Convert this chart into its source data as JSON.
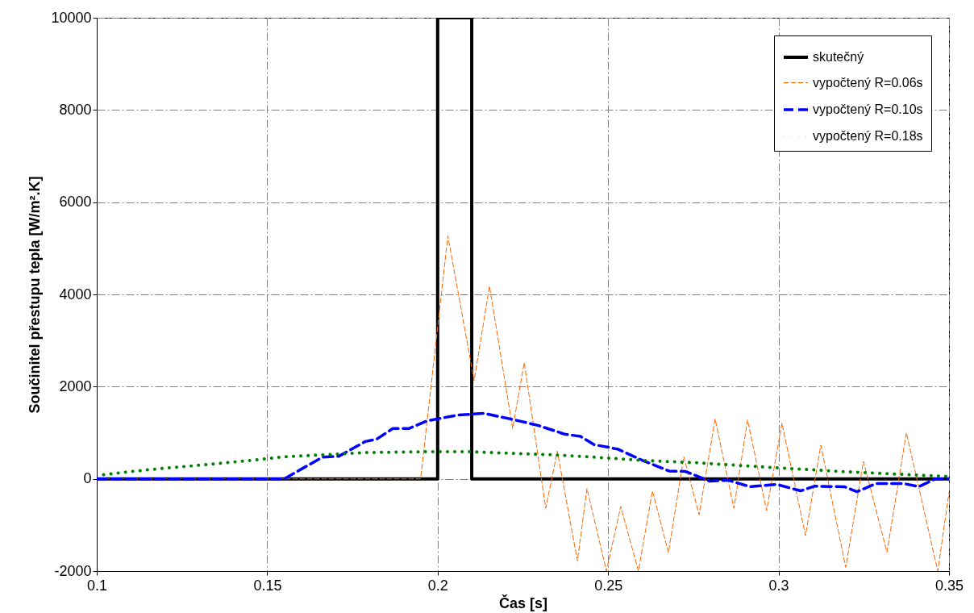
{
  "chart_data": {
    "type": "line",
    "xlabel": "Čas [s]",
    "ylabel": "Součinitel přestupu tepla [W/m².K]",
    "xlim": [
      0.1,
      0.35
    ],
    "xticks": [
      0.1,
      0.15,
      0.2,
      0.25,
      0.3,
      0.35
    ],
    "ylim": [
      -2000,
      10000
    ],
    "yticks": [
      -2000,
      0,
      2000,
      4000,
      6000,
      8000,
      10000
    ],
    "grid": true,
    "legend": "top right",
    "marker": "none",
    "series": [
      {
        "name": "skutečný",
        "color": "#000000",
        "line_style": "solid",
        "x": [
          0.1,
          0.2,
          0.2,
          0.21,
          0.21,
          0.35
        ],
        "values": [
          0,
          0,
          10000,
          10000,
          0,
          0
        ]
      },
      {
        "name": "vypočtený R=0.06s",
        "color": "#ff6600",
        "line_style": "dashed",
        "x": [
          0.1,
          0.195,
          0.203,
          0.2107,
          0.2152,
          0.222,
          0.2254,
          0.2317,
          0.2351,
          0.241,
          0.2438,
          0.2495,
          0.2537,
          0.2589,
          0.263,
          0.2677,
          0.2722,
          0.2767,
          0.2814,
          0.2869,
          0.2909,
          0.2965,
          0.301,
          0.3079,
          0.3124,
          0.3197,
          0.3249,
          0.3318,
          0.3375,
          0.3467,
          0.35
        ],
        "values": [
          0,
          0,
          5270,
          2130,
          4180,
          1090,
          2520,
          -640,
          600,
          -1780,
          -210,
          -2000,
          -600,
          -2000,
          -260,
          -1600,
          480,
          -780,
          1300,
          -640,
          1280,
          -690,
          1210,
          -1230,
          730,
          -1920,
          380,
          -1590,
          1000,
          -2000,
          -300
        ]
      },
      {
        "name": "vypočtený R=0.10s",
        "color": "#0000ff",
        "line_style": "dashed",
        "x": [
          0.1,
          0.155,
          0.1662,
          0.171,
          0.1788,
          0.1821,
          0.1868,
          0.1915,
          0.197,
          0.2057,
          0.2135,
          0.2213,
          0.2294,
          0.2372,
          0.2419,
          0.2459,
          0.2497,
          0.253,
          0.2601,
          0.2679,
          0.2727,
          0.2798,
          0.2852,
          0.2916,
          0.2994,
          0.3065,
          0.3105,
          0.3193,
          0.323,
          0.3287,
          0.3365,
          0.3412,
          0.346,
          0.35
        ],
        "values": [
          0,
          0,
          470,
          490,
          810,
          860,
          1090,
          1090,
          1260,
          1380,
          1420,
          1300,
          1160,
          970,
          920,
          740,
          690,
          640,
          400,
          170,
          160,
          -50,
          -30,
          -170,
          -120,
          -260,
          -160,
          -170,
          -280,
          -100,
          -100,
          -170,
          0,
          0
        ]
      },
      {
        "name": "vypočtený R=0.18s",
        "color": "#008000",
        "line_style": "dotted",
        "x": [
          0.102,
          0.1102,
          0.1213,
          0.1324,
          0.1466,
          0.1551,
          0.1662,
          0.1788,
          0.1977,
          0.2088,
          0.223,
          0.2341,
          0.2459,
          0.2601,
          0.2757,
          0.2994,
          0.3183,
          0.3382,
          0.35
        ],
        "values": [
          90,
          160,
          240,
          310,
          410,
          480,
          520,
          570,
          590,
          590,
          550,
          520,
          470,
          400,
          350,
          240,
          160,
          90,
          50
        ]
      }
    ]
  }
}
